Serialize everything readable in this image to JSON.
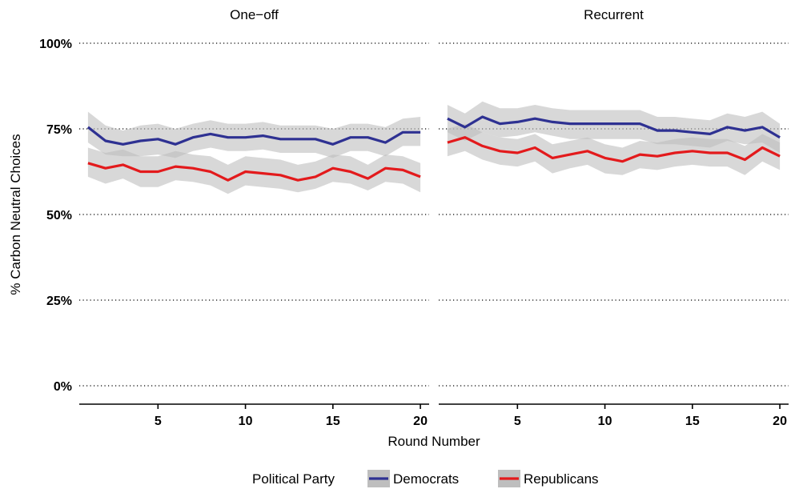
{
  "chart_data": {
    "type": "line",
    "ylabel": "% Carbon Neutral Choices",
    "xlabel": "Round Number",
    "ylim": [
      0,
      100
    ],
    "xlim": [
      0.5,
      20.5
    ],
    "y_ticks": [
      0,
      25,
      50,
      75,
      100
    ],
    "y_tick_labels": [
      "0%",
      "25%",
      "50%",
      "75%",
      "100%"
    ],
    "x_ticks": [
      5,
      10,
      15,
      20
    ],
    "x_tick_labels": [
      "5",
      "10",
      "15",
      "20"
    ],
    "grid": "horizontal dotted",
    "reference_line": 75,
    "legend": {
      "title": "Political Party",
      "placement": "bottom",
      "items": [
        "Democrats",
        "Republicans"
      ]
    },
    "colors": {
      "Democrats": "#2e3192",
      "Republicans": "#e31a1c",
      "ribbon": "#bebebe"
    },
    "x": [
      1,
      2,
      3,
      4,
      5,
      6,
      7,
      8,
      9,
      10,
      11,
      12,
      13,
      14,
      15,
      16,
      17,
      18,
      19,
      20
    ],
    "panels": [
      {
        "title": "One−off",
        "series": [
          {
            "name": "Democrats",
            "values": [
              75.5,
              71.5,
              70.5,
              71.5,
              72,
              70.5,
              72.5,
              73.5,
              72.5,
              72.5,
              73,
              72,
              72,
              72,
              70.5,
              72.5,
              72.5,
              71,
              74,
              74
            ],
            "lower": [
              71,
              67.5,
              67,
              67,
              67.5,
              66.5,
              68.5,
              69.5,
              68.5,
              68.5,
              69,
              68,
              68,
              68,
              66.5,
              68.5,
              68.5,
              67,
              70,
              70
            ],
            "upper": [
              80,
              76,
              74.5,
              76,
              76.5,
              75,
              76.5,
              77.5,
              76.5,
              76.5,
              77,
              76,
              76,
              76,
              75,
              76.5,
              76.5,
              75.5,
              78,
              78.5
            ]
          },
          {
            "name": "Republicans",
            "values": [
              65,
              63.5,
              64.5,
              62.5,
              62.5,
              64,
              63.5,
              62.5,
              60,
              62.5,
              62,
              61.5,
              60,
              61,
              63.5,
              62.5,
              60.5,
              63.5,
              63,
              61
            ],
            "lower": [
              61,
              59,
              60.5,
              58,
              58,
              60,
              59.5,
              58.5,
              56,
              58.5,
              58,
              57.5,
              56.5,
              57.5,
              59.5,
              59,
              57,
              59.5,
              59,
              56.5
            ],
            "upper": [
              69.5,
              68,
              69,
              67,
              67,
              68.5,
              67.5,
              67,
              64.5,
              67,
              66.5,
              66,
              64.5,
              65.5,
              67.5,
              67,
              64.5,
              67.5,
              67,
              65
            ]
          }
        ]
      },
      {
        "title": "Recurrent",
        "series": [
          {
            "name": "Democrats",
            "values": [
              78,
              75.5,
              78.5,
              76.5,
              77,
              78,
              77,
              76.5,
              76.5,
              76.5,
              76.5,
              76.5,
              74.5,
              74.5,
              74,
              73.5,
              75.5,
              74.5,
              75.5,
              72.5
            ],
            "lower": [
              74,
              71.5,
              74,
              72.5,
              73,
              74,
              73,
              72,
              72,
              72,
              72,
              72,
              70.5,
              70.5,
              70,
              69.5,
              71.5,
              70.5,
              71,
              68
            ],
            "upper": [
              82,
              79.5,
              83,
              81,
              81,
              82,
              81,
              80.5,
              80.5,
              80.5,
              80.5,
              80.5,
              78.5,
              78.5,
              78,
              77.5,
              79.5,
              78.5,
              80,
              76.5
            ]
          },
          {
            "name": "Republicans",
            "values": [
              71,
              72.5,
              70,
              68.5,
              68,
              69.5,
              66.5,
              67.5,
              68.5,
              66.5,
              65.5,
              67.5,
              67,
              68,
              68.5,
              68,
              68,
              66,
              69.5,
              67
            ],
            "lower": [
              67,
              68.5,
              66,
              64.5,
              64,
              65.5,
              62,
              63.5,
              64.5,
              62,
              61.5,
              63.5,
              63,
              64,
              64.5,
              64,
              64,
              61.5,
              65.5,
              63
            ],
            "upper": [
              75,
              76.5,
              74,
              72.5,
              72,
              73.5,
              70.5,
              71.5,
              72.5,
              70.5,
              69.5,
              71.5,
              71,
              72,
              72.5,
              72,
              72,
              70,
              73.5,
              71
            ]
          }
        ]
      }
    ]
  }
}
